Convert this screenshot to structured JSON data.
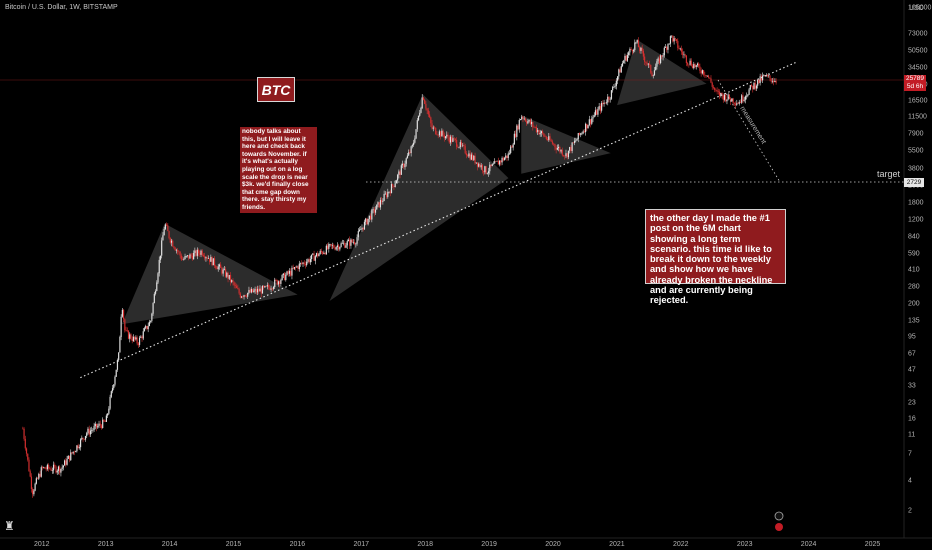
{
  "header": {
    "symbol": "Bitcoin / U.S. Dollar, 1W, BITSTAMP",
    "currency": "USD"
  },
  "badge": {
    "text": "BTC"
  },
  "notes": {
    "left": "nobody talks about this, but I will leave it here and check back towards November. if it's what's actually playing out on a log scale the drop is near $3k. we'd finally close that cme gap down there. stay thirsty my friends.",
    "right": "the other day I made the #1 post on the 6M chart showing a long term scenario. this time id like to break it down to the weekly and show how we have already broken the neckline and are currently being rejected."
  },
  "target": {
    "label": "target",
    "price": "2729"
  },
  "current_price": {
    "price": "25789",
    "sub": "5d 6h"
  },
  "arrow_text": "measurement",
  "colors": {
    "up": "#e0e0e0",
    "down": "#d32f2f",
    "note_bg": "#8f1b1e"
  },
  "chart_data": {
    "type": "candlestick",
    "scale": "log",
    "y_ticks": [
      "105000",
      "73000",
      "50500",
      "34500",
      "24000",
      "16500",
      "11500",
      "7900",
      "5500",
      "3800",
      "2600",
      "1800",
      "1200",
      "840",
      "590",
      "410",
      "280",
      "200",
      "135",
      "95",
      "67",
      "47",
      "33",
      "23",
      "16",
      "11",
      "7",
      "4",
      "2"
    ],
    "x_ticks": [
      "2012",
      "2013",
      "2014",
      "2015",
      "2016",
      "2017",
      "2018",
      "2019",
      "2020",
      "2021",
      "2022",
      "2023",
      "2024",
      "2025"
    ],
    "price_path": [
      [
        "2011.7",
        12
      ],
      [
        "2011.85",
        3
      ],
      [
        "2012.0",
        5
      ],
      [
        "2012.3",
        5
      ],
      [
        "2012.7",
        11
      ],
      [
        "2013.0",
        14
      ],
      [
        "2013.2",
        60
      ],
      [
        "2013.25",
        200
      ],
      [
        "2013.3",
        100
      ],
      [
        "2013.5",
        80
      ],
      [
        "2013.7",
        130
      ],
      [
        "2013.92",
        1100
      ],
      [
        "2014.0",
        800
      ],
      [
        "2014.2",
        500
      ],
      [
        "2014.5",
        600
      ],
      [
        "2014.9",
        350
      ],
      [
        "2015.1",
        230
      ],
      [
        "2015.5",
        260
      ],
      [
        "2015.9",
        380
      ],
      [
        "2016.0",
        430
      ],
      [
        "2016.5",
        650
      ],
      [
        "2016.9",
        750
      ],
      [
        "2017.0",
        1000
      ],
      [
        "2017.5",
        2600
      ],
      [
        "2017.8",
        6000
      ],
      [
        "2017.96",
        19000
      ],
      [
        "2018.1",
        9000
      ],
      [
        "2018.5",
        6500
      ],
      [
        "2018.95",
        3500
      ],
      [
        "2019.3",
        5000
      ],
      [
        "2019.5",
        12000
      ],
      [
        "2019.9",
        7200
      ],
      [
        "2020.2",
        5000
      ],
      [
        "2020.5",
        9300
      ],
      [
        "2020.9",
        19000
      ],
      [
        "2021.1",
        40000
      ],
      [
        "2021.3",
        60000
      ],
      [
        "2021.55",
        30000
      ],
      [
        "2021.85",
        68000
      ],
      [
        "2022.1",
        40000
      ],
      [
        "2022.4",
        30000
      ],
      [
        "2022.55",
        19500
      ],
      [
        "2022.9",
        16000
      ],
      [
        "2023.1",
        22000
      ],
      [
        "2023.3",
        28000
      ],
      [
        "2023.5",
        25789
      ]
    ],
    "neckline": {
      "from": [
        "2012.6",
        37
      ],
      "to": [
        "2023.5",
        40000
      ]
    },
    "target_price": 2729
  }
}
